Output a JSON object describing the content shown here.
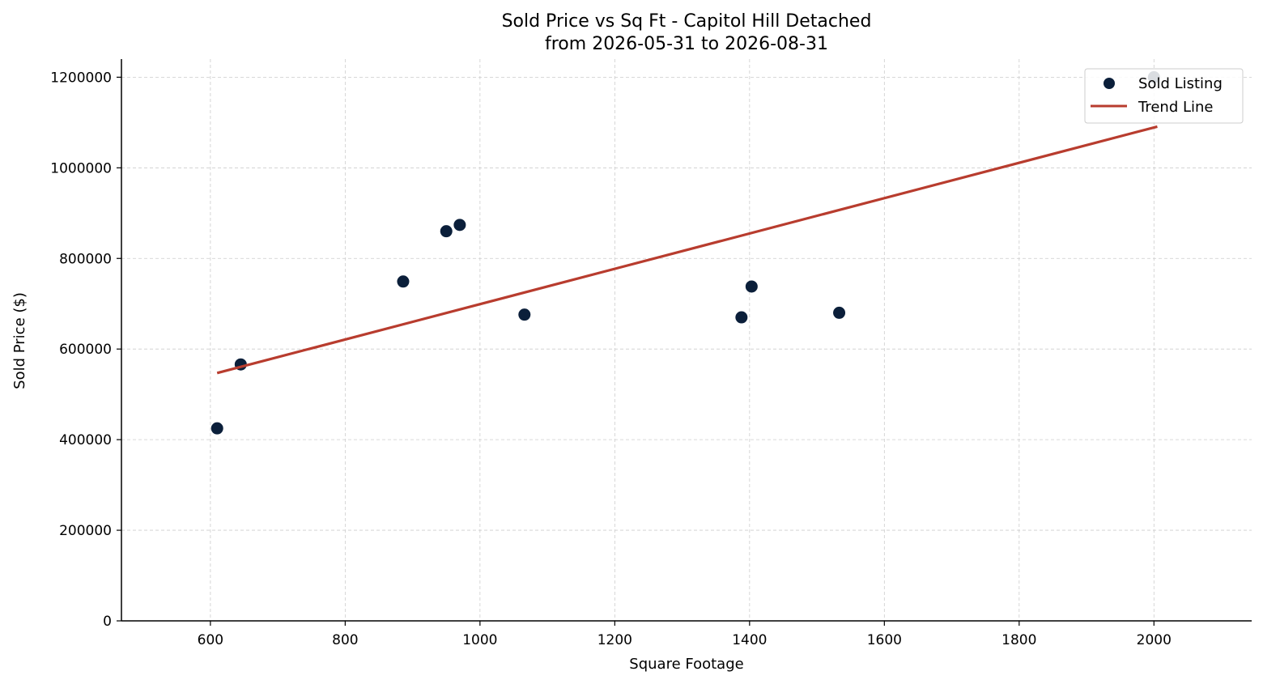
{
  "chart_data": {
    "type": "scatter",
    "title_line1": "Sold Price vs Sq Ft - Capitol Hill Detached",
    "title_line2": "from 2026-05-31 to 2026-08-31",
    "xlabel": "Square Footage",
    "ylabel": "Sold Price ($)",
    "xlim": [
      468,
      2145
    ],
    "ylim": [
      0,
      1240000
    ],
    "xticks": [
      600,
      800,
      1000,
      1200,
      1400,
      1600,
      1800,
      2000
    ],
    "yticks": [
      0,
      200000,
      400000,
      600000,
      800000,
      1000000,
      1200000
    ],
    "grid": true,
    "legend_position": "top-right",
    "series": [
      {
        "name": "Sold Listing",
        "kind": "scatter",
        "color": "#0b1f3a",
        "points": [
          {
            "x": 610,
            "y": 425000
          },
          {
            "x": 645,
            "y": 566000
          },
          {
            "x": 886,
            "y": 749000
          },
          {
            "x": 950,
            "y": 860000
          },
          {
            "x": 970,
            "y": 874000
          },
          {
            "x": 1066,
            "y": 676000
          },
          {
            "x": 1388,
            "y": 670000
          },
          {
            "x": 1403,
            "y": 738000
          },
          {
            "x": 1533,
            "y": 680000
          },
          {
            "x": 2000,
            "y": 1200000
          }
        ]
      },
      {
        "name": "Trend Line",
        "kind": "line",
        "color": "#b83c2e",
        "points": [
          {
            "x": 610,
            "y": 547000
          },
          {
            "x": 2005,
            "y": 1091000
          }
        ]
      }
    ]
  }
}
